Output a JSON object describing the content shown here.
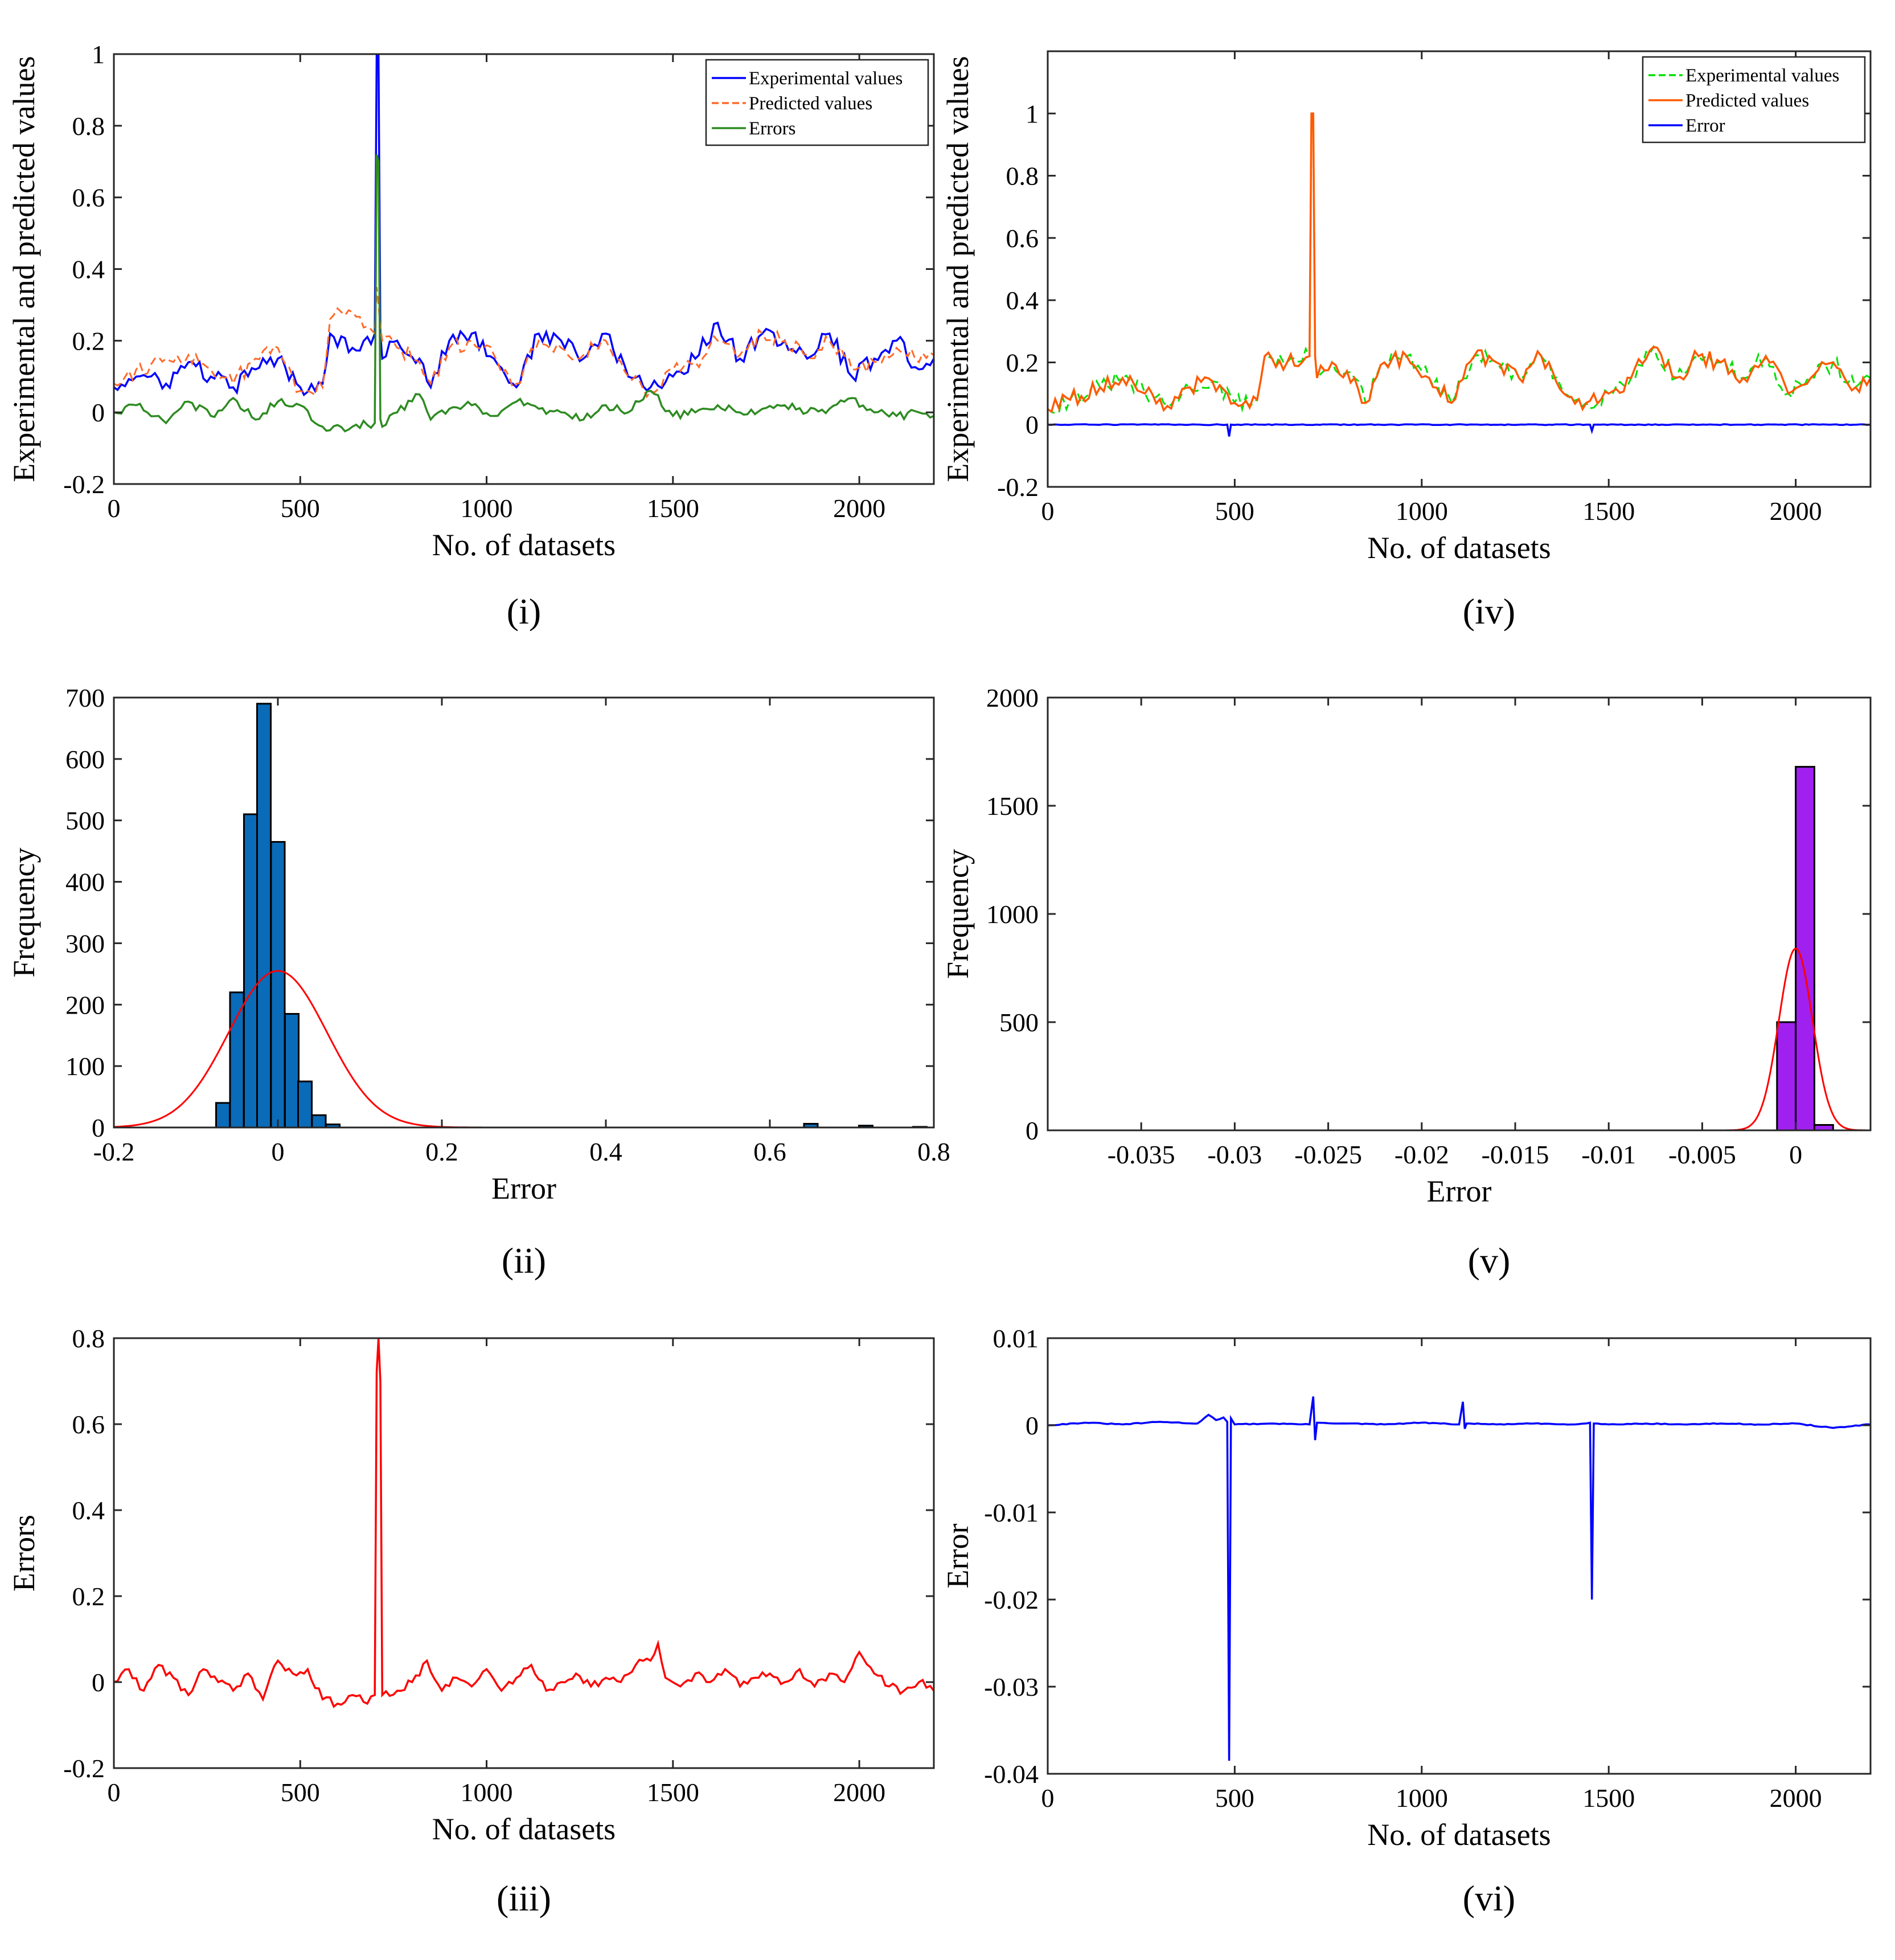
{
  "chart_data": [
    {
      "id": "i",
      "type": "line",
      "caption": "(i)",
      "xlabel": "No. of datasets",
      "ylabel": "Experimental and predicted values",
      "xlim": [
        0,
        2200
      ],
      "ylim": [
        -0.2,
        1
      ],
      "xticks": [
        0,
        500,
        1000,
        1500,
        2000
      ],
      "yticks": [
        -0.2,
        0,
        0.2,
        0.4,
        0.6,
        0.8,
        1
      ],
      "ytick_labels": [
        "-0.2",
        "0",
        "0.2",
        "0.4",
        "0.6",
        "0.8",
        "1"
      ],
      "legend": {
        "position": "top-right",
        "entries": [
          "Experimental values",
          "Predicted values",
          "Errors"
        ]
      },
      "series": [
        {
          "name": "Experimental values",
          "color": "#0000ff",
          "style": "solid",
          "x": [
            0,
            60,
            140,
            200,
            260,
            320,
            380,
            440,
            500,
            560,
            580,
            640,
            700,
            705,
            710,
            715,
            720,
            760,
            820,
            850,
            900,
            960,
            1020,
            1080,
            1140,
            1200,
            1260,
            1320,
            1380,
            1440,
            1500,
            1560,
            1620,
            1680,
            1740,
            1800,
            1860,
            1920,
            1980,
            2040,
            2100,
            2160,
            2200
          ],
          "y": [
            0.07,
            0.1,
            0.08,
            0.14,
            0.1,
            0.07,
            0.12,
            0.15,
            0.07,
            0.08,
            0.22,
            0.18,
            0.22,
            1.0,
            1.0,
            0.22,
            0.15,
            0.2,
            0.15,
            0.07,
            0.2,
            0.22,
            0.15,
            0.07,
            0.22,
            0.2,
            0.15,
            0.22,
            0.1,
            0.07,
            0.1,
            0.15,
            0.25,
            0.15,
            0.22,
            0.2,
            0.15,
            0.22,
            0.1,
            0.15,
            0.2,
            0.12,
            0.15
          ]
        },
        {
          "name": "Predicted values",
          "color": "#ff6a2a",
          "style": "dashed",
          "x": [
            0,
            60,
            140,
            200,
            260,
            320,
            380,
            440,
            500,
            560,
            580,
            640,
            700,
            705,
            710,
            715,
            720,
            760,
            820,
            850,
            900,
            960,
            1020,
            1080,
            1140,
            1200,
            1260,
            1320,
            1380,
            1440,
            1500,
            1560,
            1620,
            1680,
            1740,
            1800,
            1860,
            1920,
            1980,
            2040,
            2100,
            2160,
            2200
          ],
          "y": [
            0.08,
            0.12,
            0.15,
            0.16,
            0.12,
            0.08,
            0.15,
            0.18,
            0.06,
            0.07,
            0.26,
            0.28,
            0.22,
            0.35,
            0.3,
            0.24,
            0.2,
            0.18,
            0.14,
            0.08,
            0.18,
            0.2,
            0.16,
            0.08,
            0.2,
            0.18,
            0.16,
            0.2,
            0.1,
            0.06,
            0.12,
            0.14,
            0.2,
            0.16,
            0.22,
            0.2,
            0.16,
            0.2,
            0.12,
            0.14,
            0.18,
            0.14,
            0.16
          ]
        },
        {
          "name": "Errors",
          "color": "#2e8b22",
          "style": "solid",
          "x": [
            0,
            60,
            140,
            200,
            260,
            320,
            380,
            440,
            500,
            560,
            580,
            640,
            700,
            705,
            710,
            715,
            720,
            760,
            820,
            850,
            900,
            960,
            1020,
            1080,
            1140,
            1200,
            1260,
            1320,
            1380,
            1440,
            1500,
            1560,
            1620,
            1680,
            1740,
            1800,
            1860,
            1920,
            1980,
            2040,
            2100,
            2160,
            2200
          ],
          "y": [
            0.0,
            0.02,
            -0.03,
            0.03,
            -0.01,
            0.04,
            -0.02,
            0.03,
            0.02,
            -0.04,
            -0.05,
            -0.04,
            -0.03,
            0.72,
            0.7,
            -0.02,
            -0.04,
            0.0,
            0.05,
            -0.02,
            0.01,
            0.02,
            -0.01,
            0.03,
            0.01,
            0.0,
            -0.02,
            0.02,
            0.0,
            0.06,
            -0.01,
            0.0,
            0.02,
            0.0,
            0.01,
            0.02,
            0.0,
            0.01,
            0.04,
            0.0,
            -0.01,
            0.0,
            -0.01
          ]
        }
      ]
    },
    {
      "id": "ii",
      "type": "bar",
      "caption": "(ii)",
      "xlabel": "Error",
      "ylabel": "Frequency",
      "xlim": [
        -0.2,
        0.8
      ],
      "ylim": [
        0,
        700
      ],
      "xticks": [
        -0.2,
        0,
        0.2,
        0.4,
        0.6,
        0.8
      ],
      "xtick_labels": [
        "-0.2",
        "0",
        "0.2",
        "0.4",
        "0.6",
        "0.8"
      ],
      "yticks": [
        0,
        100,
        200,
        300,
        400,
        500,
        600,
        700
      ],
      "bar_color": "#0a6bb9",
      "bin_width": 0.0167,
      "bins": [
        {
          "x": -0.067,
          "count": 40
        },
        {
          "x": -0.05,
          "count": 220
        },
        {
          "x": -0.033,
          "count": 510
        },
        {
          "x": -0.017,
          "count": 690
        },
        {
          "x": 0.0,
          "count": 465
        },
        {
          "x": 0.017,
          "count": 185
        },
        {
          "x": 0.033,
          "count": 75
        },
        {
          "x": 0.05,
          "count": 20
        },
        {
          "x": 0.067,
          "count": 5
        },
        {
          "x": 0.65,
          "count": 6
        },
        {
          "x": 0.717,
          "count": 3
        },
        {
          "x": 0.783,
          "count": 1
        }
      ],
      "fit": {
        "name": "normal fit",
        "color": "#ff0000",
        "mean": 0.0,
        "std": 0.06,
        "peak": 255
      }
    },
    {
      "id": "iii",
      "type": "line",
      "caption": "(iii)",
      "xlabel": "No. of datasets",
      "ylabel": "Errors",
      "xlim": [
        0,
        2200
      ],
      "ylim": [
        -0.2,
        0.8
      ],
      "xticks": [
        0,
        500,
        1000,
        1500,
        2000
      ],
      "yticks": [
        -0.2,
        0,
        0.2,
        0.4,
        0.6,
        0.8
      ],
      "ytick_labels": [
        "-0.2",
        "0",
        "0.2",
        "0.4",
        "0.6",
        "0.8"
      ],
      "series": [
        {
          "name": "Errors",
          "color": "#ff0000",
          "style": "solid",
          "x": [
            0,
            40,
            80,
            120,
            160,
            200,
            240,
            280,
            320,
            360,
            400,
            440,
            480,
            520,
            560,
            600,
            640,
            680,
            700,
            705,
            710,
            715,
            720,
            760,
            800,
            840,
            880,
            920,
            960,
            1000,
            1040,
            1080,
            1120,
            1160,
            1200,
            1240,
            1280,
            1320,
            1360,
            1400,
            1440,
            1460,
            1480,
            1520,
            1560,
            1600,
            1640,
            1680,
            1720,
            1760,
            1800,
            1840,
            1880,
            1920,
            1960,
            2000,
            2040,
            2080,
            2120,
            2160,
            2200
          ],
          "y": [
            0.0,
            0.03,
            -0.02,
            0.04,
            0.01,
            -0.03,
            0.03,
            0.0,
            -0.02,
            0.02,
            -0.04,
            0.05,
            0.02,
            0.03,
            -0.04,
            -0.05,
            -0.03,
            -0.05,
            -0.03,
            0.72,
            0.8,
            0.7,
            -0.03,
            -0.02,
            0.0,
            0.05,
            -0.02,
            0.01,
            -0.01,
            0.03,
            -0.02,
            0.01,
            0.04,
            -0.02,
            0.0,
            0.02,
            -0.01,
            0.01,
            0.0,
            0.04,
            0.05,
            0.09,
            0.01,
            -0.01,
            0.02,
            0.0,
            0.03,
            -0.01,
            0.01,
            0.02,
            0.0,
            0.03,
            -0.01,
            0.02,
            0.0,
            0.07,
            0.02,
            -0.01,
            -0.02,
            0.0,
            -0.02
          ]
        }
      ]
    },
    {
      "id": "iv",
      "type": "line",
      "caption": "(iv)",
      "xlabel": "No. of datasets",
      "ylabel": "Experimental and predicted values",
      "xlim": [
        0,
        2200
      ],
      "ylim": [
        -0.2,
        1.2
      ],
      "xticks": [
        0,
        500,
        1000,
        1500,
        2000
      ],
      "yticks": [
        -0.2,
        0,
        0.2,
        0.4,
        0.6,
        0.8,
        1
      ],
      "ytick_labels": [
        "-0.2",
        "0",
        "0.2",
        "0.4",
        "0.6",
        "0.8",
        "1"
      ],
      "legend": {
        "position": "top-right",
        "entries": [
          "Experimental values",
          "Predicted values",
          "Error"
        ]
      },
      "series": [
        {
          "name": "Experimental values",
          "color": "#00e000",
          "style": "dashed",
          "x": [
            0,
            60,
            140,
            200,
            260,
            320,
            380,
            440,
            500,
            560,
            580,
            640,
            700,
            705,
            710,
            715,
            720,
            760,
            820,
            850,
            900,
            960,
            1020,
            1080,
            1140,
            1200,
            1260,
            1320,
            1380,
            1440,
            1500,
            1560,
            1620,
            1680,
            1740,
            1800,
            1860,
            1920,
            1980,
            2040,
            2100,
            2160,
            2200
          ],
          "y": [
            0.05,
            0.08,
            0.12,
            0.15,
            0.1,
            0.06,
            0.12,
            0.14,
            0.07,
            0.08,
            0.22,
            0.2,
            0.22,
            1.0,
            1.0,
            0.22,
            0.15,
            0.2,
            0.15,
            0.07,
            0.2,
            0.22,
            0.15,
            0.07,
            0.22,
            0.2,
            0.15,
            0.22,
            0.1,
            0.07,
            0.1,
            0.15,
            0.25,
            0.15,
            0.22,
            0.2,
            0.15,
            0.22,
            0.1,
            0.15,
            0.2,
            0.12,
            0.15
          ]
        },
        {
          "name": "Predicted values",
          "color": "#ff5a00",
          "style": "solid",
          "x": [
            0,
            60,
            140,
            200,
            260,
            320,
            380,
            440,
            500,
            560,
            580,
            640,
            700,
            705,
            710,
            715,
            720,
            760,
            820,
            850,
            900,
            960,
            1020,
            1080,
            1140,
            1200,
            1260,
            1320,
            1380,
            1440,
            1500,
            1560,
            1620,
            1680,
            1740,
            1800,
            1860,
            1920,
            1980,
            2040,
            2100,
            2160,
            2200
          ],
          "y": [
            0.05,
            0.08,
            0.12,
            0.15,
            0.1,
            0.06,
            0.12,
            0.14,
            0.07,
            0.08,
            0.22,
            0.2,
            0.22,
            1.0,
            1.0,
            0.22,
            0.15,
            0.2,
            0.15,
            0.07,
            0.2,
            0.22,
            0.15,
            0.07,
            0.22,
            0.2,
            0.15,
            0.22,
            0.1,
            0.07,
            0.1,
            0.15,
            0.25,
            0.15,
            0.22,
            0.2,
            0.15,
            0.22,
            0.1,
            0.15,
            0.2,
            0.12,
            0.15
          ]
        },
        {
          "name": "Error",
          "color": "#0000ff",
          "style": "solid",
          "x": [
            0,
            480,
            485,
            490,
            1450,
            1455,
            1460,
            2200
          ],
          "y": [
            0,
            0,
            -0.038,
            0,
            0,
            -0.02,
            0,
            0
          ]
        }
      ]
    },
    {
      "id": "v",
      "type": "bar",
      "caption": "(v)",
      "xlabel": "Error",
      "ylabel": "Frequency",
      "xlim": [
        -0.04,
        0.004
      ],
      "ylim": [
        0,
        2000
      ],
      "xticks": [
        -0.035,
        -0.03,
        -0.025,
        -0.02,
        -0.015,
        -0.01,
        -0.005,
        0
      ],
      "xtick_labels": [
        "-0.035",
        "-0.03",
        "-0.025",
        "-0.02",
        "-0.015",
        "-0.01",
        "-0.005",
        "0"
      ],
      "yticks": [
        0,
        500,
        1000,
        1500,
        2000
      ],
      "bar_color": "#a020f0",
      "bin_width": 0.001,
      "bins": [
        {
          "x": -0.0005,
          "count": 500
        },
        {
          "x": 0.0005,
          "count": 1680
        },
        {
          "x": 0.0015,
          "count": 25
        }
      ],
      "fit": {
        "name": "normal fit",
        "color": "#ff0000",
        "mean": 0.0,
        "std": 0.0009,
        "peak": 840
      }
    },
    {
      "id": "vi",
      "type": "line",
      "caption": "(vi)",
      "xlabel": "No. of datasets",
      "ylabel": "Error",
      "xlim": [
        0,
        2200
      ],
      "ylim": [
        -0.04,
        0.01
      ],
      "xticks": [
        0,
        500,
        1000,
        1500,
        2000
      ],
      "yticks": [
        -0.04,
        -0.03,
        -0.02,
        -0.01,
        0,
        0.01
      ],
      "ytick_labels": [
        "-0.04",
        "-0.03",
        "-0.02",
        "-0.01",
        "0",
        "0.01"
      ],
      "series": [
        {
          "name": "Error",
          "color": "#0000ff",
          "style": "solid",
          "x": [
            0,
            100,
            200,
            300,
            400,
            430,
            450,
            470,
            480,
            485,
            490,
            500,
            600,
            700,
            710,
            715,
            720,
            800,
            900,
            1000,
            1100,
            1110,
            1115,
            1120,
            1200,
            1300,
            1400,
            1450,
            1455,
            1460,
            1500,
            1600,
            1700,
            1800,
            1900,
            2000,
            2100,
            2200
          ],
          "y": [
            0.0,
            0.0003,
            0.0001,
            0.0004,
            0.0002,
            0.0012,
            0.0006,
            0.0009,
            0.0004,
            -0.0385,
            0.0008,
            0.0001,
            0.0002,
            0.0001,
            0.0033,
            -0.0017,
            0.0003,
            0.0002,
            0.0001,
            0.0003,
            0.0001,
            0.0027,
            -0.0004,
            0.0002,
            0.0001,
            0.0002,
            0.0001,
            0.0003,
            -0.02,
            0.0002,
            0.0001,
            0.0002,
            0.0001,
            0.0002,
            0.0001,
            0.0002,
            -0.0003,
            0.0001
          ]
        }
      ]
    }
  ]
}
